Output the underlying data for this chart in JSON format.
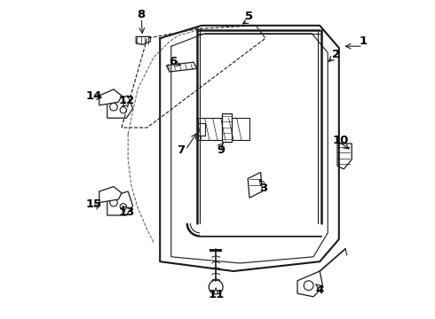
{
  "background_color": "#ffffff",
  "line_color": "#1a1a1a",
  "label_color": "#000000",
  "fig_width": 4.9,
  "fig_height": 3.6,
  "dpi": 100,
  "label_fontsize": 9.5,
  "label_fontweight": "bold"
}
